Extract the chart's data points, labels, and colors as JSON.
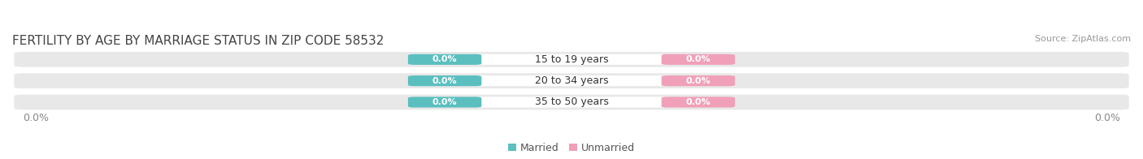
{
  "title": "FERTILITY BY AGE BY MARRIAGE STATUS IN ZIP CODE 58532",
  "source": "Source: ZipAtlas.com",
  "categories": [
    "15 to 19 years",
    "20 to 34 years",
    "35 to 50 years"
  ],
  "married_values": [
    0.0,
    0.0,
    0.0
  ],
  "unmarried_values": [
    0.0,
    0.0,
    0.0
  ],
  "married_color": "#5BBFBF",
  "unmarried_color": "#F0A0B8",
  "bar_bg_color": "#E8E8E8",
  "center_label_bg": "#FFFFFF",
  "title_fontsize": 11,
  "label_fontsize": 9,
  "value_fontsize": 8,
  "source_fontsize": 8,
  "legend_married": "Married",
  "legend_unmarried": "Unmarried",
  "background_color": "#FFFFFF",
  "fig_width": 14.06,
  "fig_height": 1.96,
  "axis_label_left": "0.0%",
  "axis_label_right": "0.0%"
}
